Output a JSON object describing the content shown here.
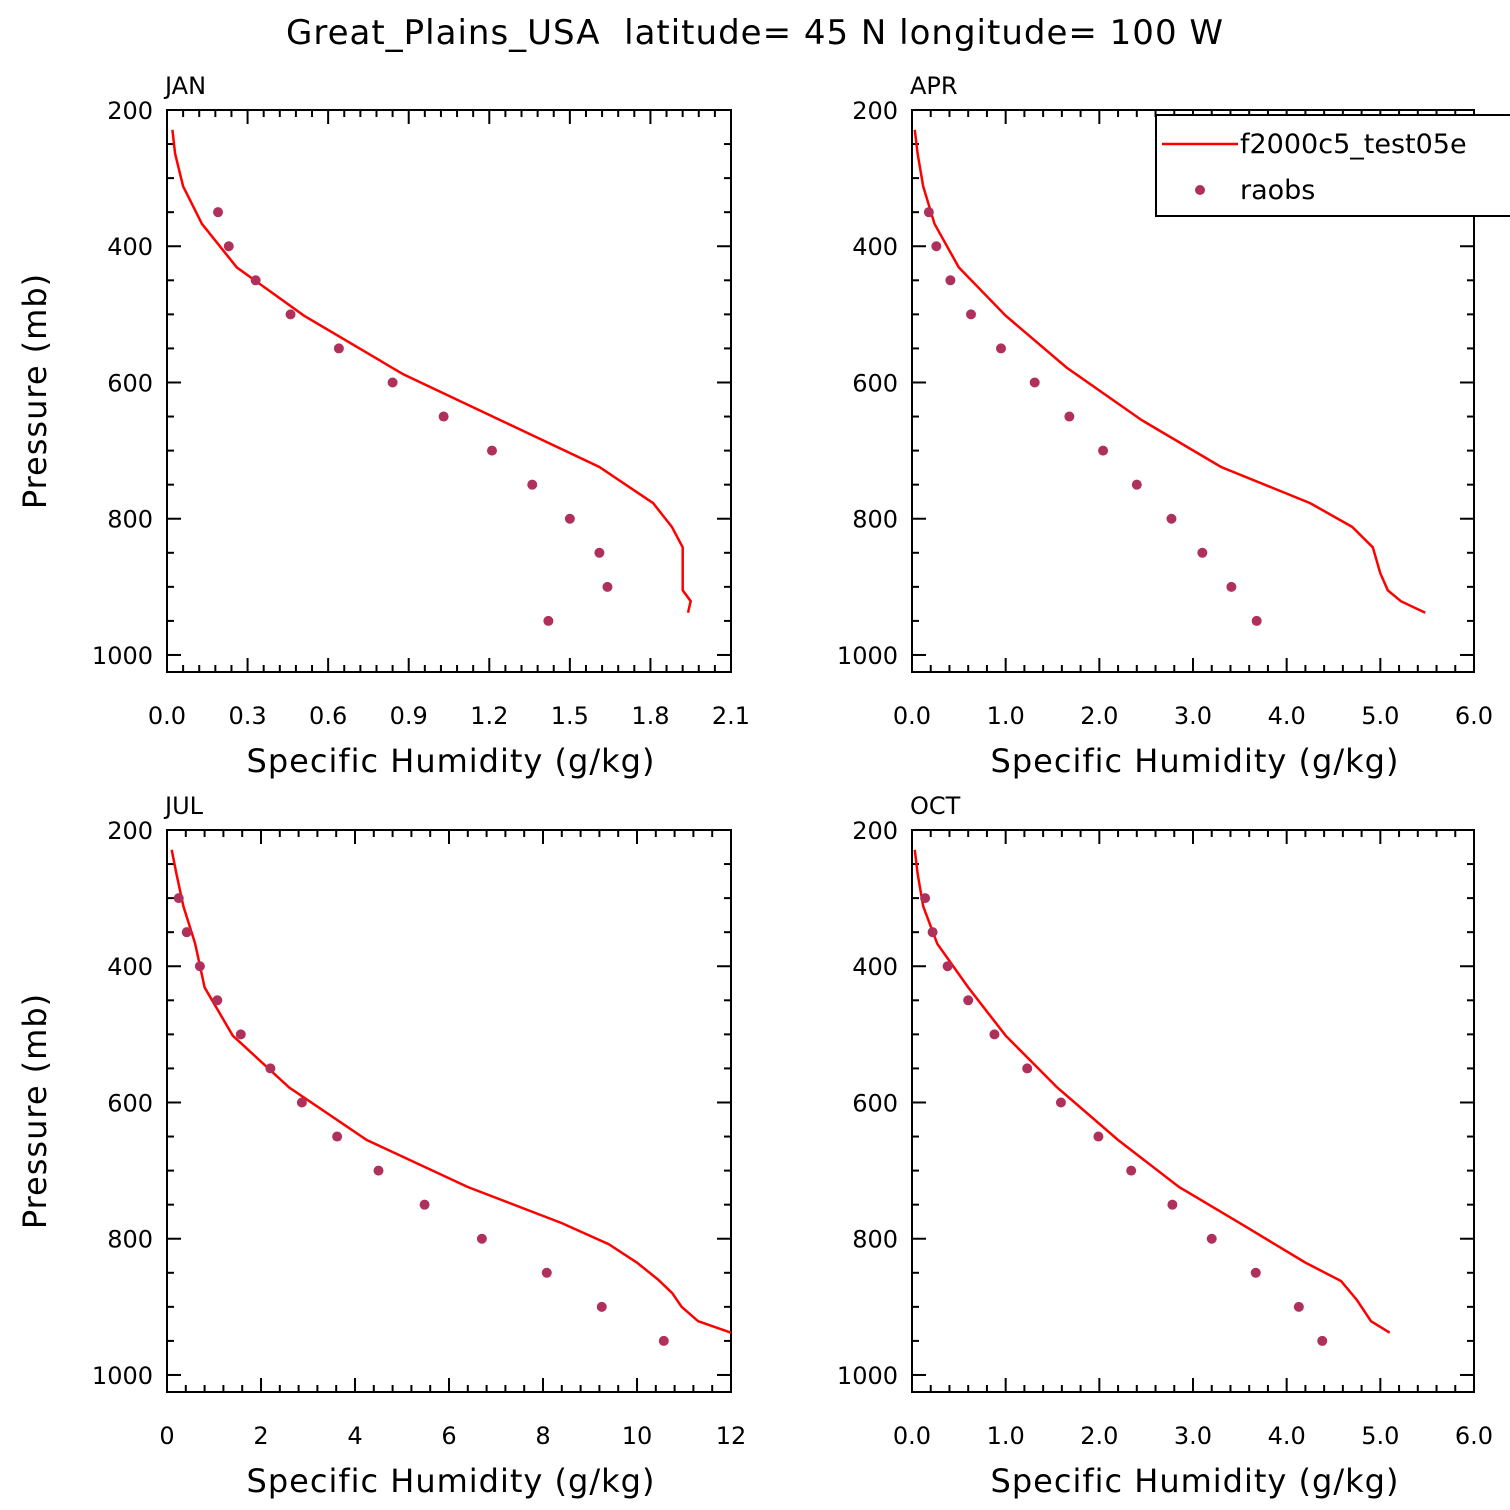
{
  "title": "Great_Plains_USA  latitude= 45 N longitude= 100 W",
  "colors": {
    "model": "#ff0000",
    "obs": "#b0305c",
    "axes": "#000000"
  },
  "legend": {
    "placement": "top-right of APR panel",
    "model_label": "f2000c5_test05e",
    "obs_label": "raobs"
  },
  "chart_data": [
    {
      "type": "line",
      "panel": "JAN",
      "xlabel": "Specific Humidity (g/kg)",
      "ylabel": "Pressure (mb)",
      "xlim": [
        0,
        2.1
      ],
      "ylim": [
        1025,
        200
      ],
      "y_inverted": true,
      "xticks": [
        "0.0",
        "0.3",
        "0.6",
        "0.9",
        "1.2",
        "1.5",
        "1.8",
        "2.1"
      ],
      "yticks": [
        "200",
        "400",
        "600",
        "800",
        "1000"
      ],
      "series": [
        {
          "name": "f2000c5_test05e",
          "kind": "line",
          "x": [
            0.02,
            0.03,
            0.06,
            0.13,
            0.26,
            0.51,
            0.88,
            1.61,
            1.81,
            1.88,
            1.92,
            1.92,
            1.95,
            1.94
          ],
          "y": [
            229,
            264,
            312,
            367,
            431,
            502,
            588,
            724,
            777,
            812,
            842,
            905,
            921,
            938
          ]
        },
        {
          "name": "raobs",
          "kind": "points",
          "x": [
            0.19,
            0.23,
            0.33,
            0.46,
            0.64,
            0.84,
            1.03,
            1.21,
            1.36,
            1.5,
            1.61,
            1.64,
            1.42
          ],
          "y": [
            350,
            400,
            450,
            500,
            550,
            600,
            650,
            700,
            750,
            800,
            850,
            900,
            950
          ]
        }
      ]
    },
    {
      "type": "line",
      "panel": "APR",
      "xlabel": "Specific Humidity (g/kg)",
      "ylabel": "",
      "xlim": [
        0,
        6
      ],
      "ylim": [
        1025,
        200
      ],
      "y_inverted": true,
      "xticks": [
        "0.0",
        "1.0",
        "2.0",
        "3.0",
        "4.0",
        "5.0",
        "6.0"
      ],
      "yticks": [
        "200",
        "400",
        "600",
        "800",
        "1000"
      ],
      "series": [
        {
          "name": "f2000c5_test05e",
          "kind": "line",
          "x": [
            0.03,
            0.06,
            0.12,
            0.24,
            0.5,
            1.0,
            1.65,
            2.45,
            3.3,
            4.25,
            4.7,
            4.92,
            5.0,
            5.08,
            5.22,
            5.48
          ],
          "y": [
            229,
            264,
            312,
            367,
            431,
            502,
            578,
            655,
            724,
            777,
            812,
            842,
            880,
            905,
            921,
            938
          ]
        },
        {
          "name": "raobs",
          "kind": "points",
          "x": [
            0.18,
            0.26,
            0.41,
            0.63,
            0.95,
            1.31,
            1.68,
            2.04,
            2.4,
            2.77,
            3.1,
            3.41,
            3.68
          ],
          "y": [
            350,
            400,
            450,
            500,
            550,
            600,
            650,
            700,
            750,
            800,
            850,
            900,
            950
          ]
        }
      ]
    },
    {
      "type": "line",
      "panel": "JUL",
      "xlabel": "Specific Humidity (g/kg)",
      "ylabel": "Pressure (mb)",
      "xlim": [
        0,
        12
      ],
      "ylim": [
        1025,
        200
      ],
      "y_inverted": true,
      "xticks": [
        "0",
        "2",
        "4",
        "6",
        "8",
        "10",
        "12"
      ],
      "yticks": [
        "200",
        "400",
        "600",
        "800",
        "1000"
      ],
      "series": [
        {
          "name": "f2000c5_test05e",
          "kind": "line",
          "x": [
            0.1,
            0.2,
            0.35,
            0.6,
            0.8,
            1.4,
            2.6,
            4.25,
            6.4,
            8.4,
            9.4,
            10.0,
            10.45,
            10.75,
            10.95,
            11.3,
            12.0
          ],
          "y": [
            229,
            264,
            312,
            367,
            431,
            502,
            578,
            655,
            724,
            777,
            808,
            835,
            860,
            880,
            900,
            921,
            938
          ]
        },
        {
          "name": "raobs",
          "kind": "points",
          "x": [
            0.25,
            0.42,
            0.7,
            1.07,
            1.57,
            2.2,
            2.87,
            3.62,
            4.5,
            5.48,
            6.7,
            8.08,
            9.25,
            10.57
          ],
          "y": [
            300,
            350,
            400,
            450,
            500,
            550,
            600,
            650,
            700,
            750,
            800,
            850,
            900,
            950
          ]
        }
      ]
    },
    {
      "type": "line",
      "panel": "OCT",
      "xlabel": "Specific Humidity (g/kg)",
      "ylabel": "",
      "xlim": [
        0,
        6
      ],
      "ylim": [
        1025,
        200
      ],
      "y_inverted": true,
      "xticks": [
        "0.0",
        "1.0",
        "2.0",
        "3.0",
        "4.0",
        "5.0",
        "6.0"
      ],
      "yticks": [
        "200",
        "400",
        "600",
        "800",
        "1000"
      ],
      "series": [
        {
          "name": "f2000c5_test05e",
          "kind": "line",
          "x": [
            0.03,
            0.06,
            0.12,
            0.27,
            0.6,
            1.0,
            1.55,
            2.2,
            2.85,
            3.5,
            4.2,
            4.58,
            4.75,
            4.9,
            5.1
          ],
          "y": [
            229,
            264,
            312,
            367,
            431,
            502,
            578,
            655,
            724,
            777,
            835,
            862,
            890,
            921,
            938
          ]
        },
        {
          "name": "raobs",
          "kind": "points",
          "x": [
            0.14,
            0.22,
            0.38,
            0.6,
            0.88,
            1.23,
            1.59,
            1.99,
            2.34,
            2.78,
            3.2,
            3.67,
            4.13,
            4.38
          ],
          "y": [
            300,
            350,
            400,
            450,
            500,
            550,
            600,
            650,
            700,
            750,
            800,
            850,
            900,
            950
          ]
        }
      ]
    }
  ]
}
